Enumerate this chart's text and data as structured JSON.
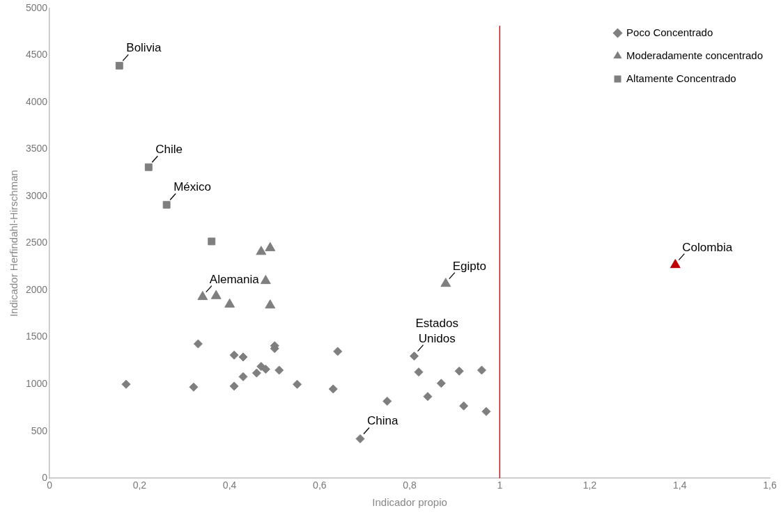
{
  "chart_data": {
    "type": "scatter",
    "xlabel": "Indicador propio",
    "ylabel": "Indicador Herfindahl-Hirschman",
    "xlim": [
      0,
      1.6
    ],
    "xticks": [
      0,
      {
        "value": 0.2,
        "label": "0,2"
      },
      {
        "value": 0.4,
        "label": "0,4"
      },
      {
        "value": 0.6,
        "label": "0,6"
      },
      {
        "value": 0.8,
        "label": "0,8"
      },
      1,
      {
        "value": 1.2,
        "label": "1,2"
      },
      {
        "value": 1.4,
        "label": "1,4"
      },
      {
        "value": 1.6,
        "label": "1,6"
      }
    ],
    "ylim": [
      0,
      5000
    ],
    "yticks": [
      0,
      500,
      1000,
      1500,
      2000,
      2500,
      3000,
      3500,
      4000,
      4500,
      5000
    ],
    "grid": false,
    "legend": "top right",
    "series": [
      {
        "name": "Poco Concentrado",
        "color": "#7f7f7f",
        "marker": "diamond",
        "x": [
          0.17,
          0.32,
          0.33,
          0.41,
          0.41,
          0.43,
          0.43,
          0.46,
          0.47,
          0.48,
          0.5,
          0.5,
          0.51,
          0.55,
          0.63,
          0.64,
          0.69,
          0.75,
          0.81,
          0.82,
          0.84,
          0.87,
          0.91,
          0.92,
          0.96,
          0.97
        ],
        "values": [
          1000,
          970,
          1430,
          1310,
          980,
          1290,
          1080,
          1120,
          1190,
          1160,
          1380,
          1410,
          1150,
          1000,
          950,
          1350,
          420,
          820,
          1300,
          1130,
          870,
          1010,
          1140,
          770,
          1150,
          710
        ]
      },
      {
        "name": "Moderadamente concentrado",
        "color": "#7f7f7f",
        "marker": "triangle",
        "x": [
          0.34,
          0.37,
          0.4,
          0.47,
          0.49,
          0.48,
          0.49,
          0.88,
          1.39
        ],
        "values": [
          1930,
          1940,
          1850,
          2410,
          2450,
          2100,
          1840,
          2070,
          2270
        ],
        "colors": [
          "#7f7f7f",
          "#7f7f7f",
          "#7f7f7f",
          "#7f7f7f",
          "#7f7f7f",
          "#7f7f7f",
          "#7f7f7f",
          "#7f7f7f",
          "#c00000"
        ]
      },
      {
        "name": "Altamente Concentrado",
        "color": "#7f7f7f",
        "marker": "square",
        "x": [
          0.155,
          0.22,
          0.26,
          0.36
        ],
        "values": [
          4390,
          3310,
          2910,
          2520
        ]
      }
    ],
    "ref_lines": [
      {
        "axis": "x",
        "value": 1,
        "color": "#ff0000"
      }
    ],
    "annotations": [
      {
        "text": "Bolivia",
        "x": 0.155,
        "y": 4390
      },
      {
        "text": "Chile",
        "x": 0.22,
        "y": 3310
      },
      {
        "text": "México",
        "x": 0.26,
        "y": 2910
      },
      {
        "text": "Alemania",
        "x": 0.34,
        "y": 1930
      },
      {
        "text": "Egipto",
        "x": 0.88,
        "y": 2070
      },
      {
        "text": "Estados Unidos",
        "x": 0.81,
        "y": 1300
      },
      {
        "text": "China",
        "x": 0.69,
        "y": 420
      },
      {
        "text": "Colombia",
        "x": 1.39,
        "y": 2270
      }
    ]
  }
}
